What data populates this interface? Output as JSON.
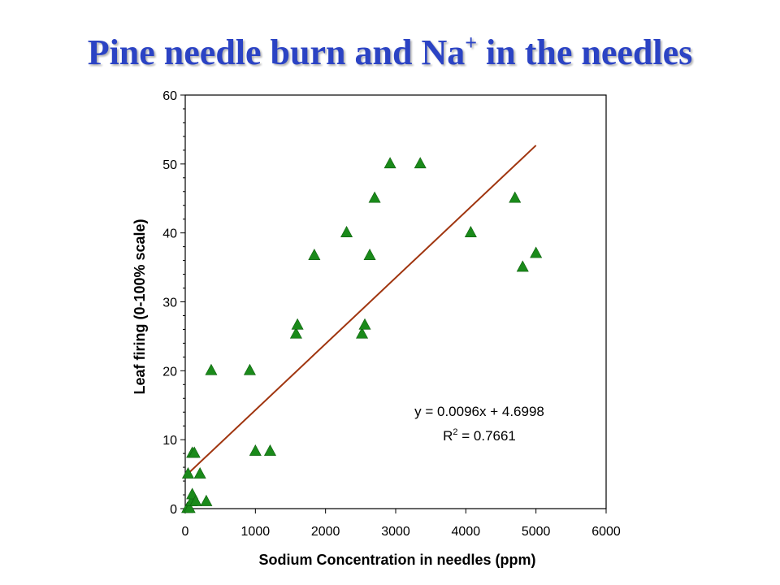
{
  "title": {
    "main": "Pine needle burn and Na",
    "sup": "+",
    "rest": " in the needles"
  },
  "colors": {
    "title": "#2b43c4",
    "marker": "#1a8a1a",
    "trendline": "#a0350f",
    "axis": "#000000"
  },
  "chart_data": {
    "type": "scatter",
    "title": "Pine needle burn and Na+ in the needles",
    "xlabel": "Sodium Concentration in needles (ppm)",
    "ylabel": "Leaf firing (0-100% scale)",
    "xlim": [
      0,
      6000
    ],
    "ylim": [
      0,
      60
    ],
    "xticks": [
      0,
      1000,
      2000,
      3000,
      4000,
      5000,
      6000
    ],
    "yticks": [
      0,
      10,
      20,
      30,
      40,
      50,
      60
    ],
    "grid": false,
    "marker": "triangle",
    "points": [
      {
        "x": 30,
        "y": 0
      },
      {
        "x": 60,
        "y": 0
      },
      {
        "x": 90,
        "y": 1
      },
      {
        "x": 100,
        "y": 2
      },
      {
        "x": 150,
        "y": 1
      },
      {
        "x": 300,
        "y": 1
      },
      {
        "x": 40,
        "y": 5
      },
      {
        "x": 210,
        "y": 5
      },
      {
        "x": 100,
        "y": 8
      },
      {
        "x": 130,
        "y": 8
      },
      {
        "x": 370,
        "y": 20
      },
      {
        "x": 920,
        "y": 20
      },
      {
        "x": 1000,
        "y": 8.3
      },
      {
        "x": 1210,
        "y": 8.3
      },
      {
        "x": 1580,
        "y": 25.3
      },
      {
        "x": 1600,
        "y": 26.6
      },
      {
        "x": 1840,
        "y": 36.7
      },
      {
        "x": 2300,
        "y": 40
      },
      {
        "x": 2520,
        "y": 25.3
      },
      {
        "x": 2560,
        "y": 26.6
      },
      {
        "x": 2630,
        "y": 36.7
      },
      {
        "x": 2700,
        "y": 45
      },
      {
        "x": 2920,
        "y": 50
      },
      {
        "x": 3350,
        "y": 50
      },
      {
        "x": 4070,
        "y": 40
      },
      {
        "x": 4700,
        "y": 45
      },
      {
        "x": 4810,
        "y": 35
      },
      {
        "x": 5000,
        "y": 37
      }
    ],
    "trendline": {
      "slope": 0.0096,
      "intercept": 4.6998,
      "x_start": 0,
      "x_end": 5000
    },
    "annotations": {
      "equation": "y = 0.0096x + 4.6998",
      "r2_label": "R",
      "r2_sup": "2",
      "r2_value": " = 0.7661"
    }
  }
}
